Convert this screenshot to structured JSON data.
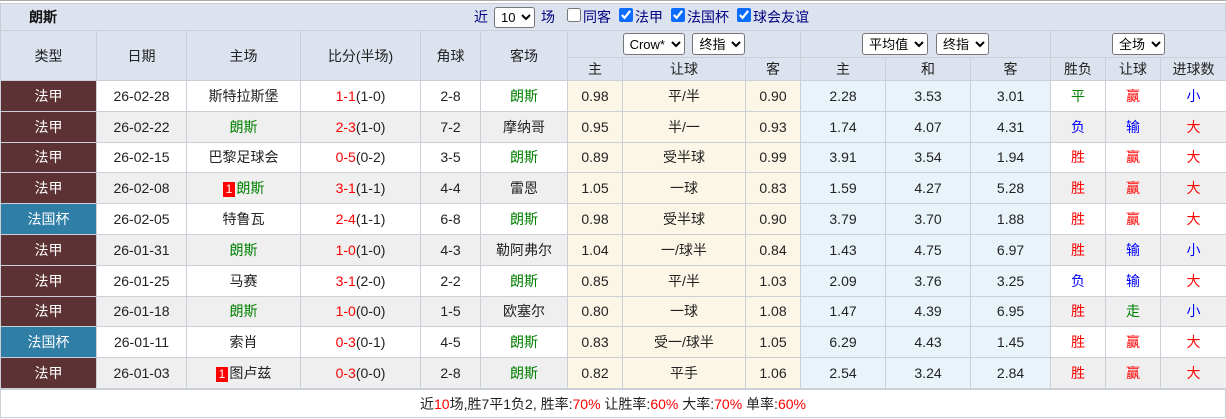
{
  "title": "朗斯",
  "toolbar": {
    "recent_label": "近",
    "count_value": "10",
    "matches_label": "场",
    "filters": [
      {
        "label": "同客",
        "checked": false
      },
      {
        "label": "法甲",
        "checked": true
      },
      {
        "label": "法国杯",
        "checked": true
      },
      {
        "label": "球会友谊",
        "checked": true
      }
    ]
  },
  "header": {
    "static_columns": [
      "类型",
      "日期",
      "主场",
      "比分(半场)",
      "角球",
      "客场"
    ],
    "odds_group": {
      "selects": [
        "Crow*",
        "终指"
      ],
      "columns": [
        "主",
        "让球",
        "客"
      ]
    },
    "avg_group": {
      "selects": [
        "平均值",
        "终指"
      ],
      "columns": [
        "主",
        "和",
        "客"
      ]
    },
    "result_group": {
      "selects": [
        "全场"
      ],
      "columns": [
        "胜负",
        "让球",
        "进球数"
      ]
    }
  },
  "colors": {
    "ligue1_bg": "#5c3234",
    "cup_bg": "#2e7ea6",
    "team_green": "#008000",
    "score_red": "#ff0000",
    "result_red": "#ff0000",
    "result_blue": "#0000ff",
    "result_green": "#008000",
    "odds_bg": "#fcf6e7",
    "avg_bg": "#e9f4fa",
    "header_bg": "#dce3ee",
    "row_alt_bg": "#efefef",
    "label_navy": "#000080"
  },
  "rows": [
    {
      "type": "法甲",
      "type_bg": "ligue1_bg",
      "date": "26-02-28",
      "home": {
        "badge": "",
        "name": "斯特拉斯堡",
        "green": false
      },
      "score": {
        "main": "1-1",
        "half": "(1-0)"
      },
      "corner": "2-8",
      "away": {
        "name": "朗斯",
        "green": true
      },
      "odds_home": "0.98",
      "handicap": "平/半",
      "odds_away": "0.90",
      "avg_home": "2.28",
      "avg_draw": "3.53",
      "avg_away": "3.01",
      "outcome": {
        "t": "平",
        "c": "cg"
      },
      "hresult": {
        "t": "赢",
        "c": "cr"
      },
      "goals": {
        "t": "小",
        "c": "cb"
      }
    },
    {
      "type": "法甲",
      "type_bg": "ligue1_bg",
      "date": "26-02-22",
      "home": {
        "badge": "",
        "name": "朗斯",
        "green": true
      },
      "score": {
        "main": "2-3",
        "half": "(1-0)"
      },
      "corner": "7-2",
      "away": {
        "name": "摩纳哥",
        "green": false
      },
      "odds_home": "0.95",
      "handicap": "半/一",
      "odds_away": "0.93",
      "avg_home": "1.74",
      "avg_draw": "4.07",
      "avg_away": "4.31",
      "outcome": {
        "t": "负",
        "c": "cb"
      },
      "hresult": {
        "t": "输",
        "c": "cb"
      },
      "goals": {
        "t": "大",
        "c": "cr"
      }
    },
    {
      "type": "法甲",
      "type_bg": "ligue1_bg",
      "date": "26-02-15",
      "home": {
        "badge": "",
        "name": "巴黎足球会",
        "green": false
      },
      "score": {
        "main": "0-5",
        "half": "(0-2)"
      },
      "corner": "3-5",
      "away": {
        "name": "朗斯",
        "green": true
      },
      "odds_home": "0.89",
      "handicap": "受半球",
      "odds_away": "0.99",
      "avg_home": "3.91",
      "avg_draw": "3.54",
      "avg_away": "1.94",
      "outcome": {
        "t": "胜",
        "c": "cr"
      },
      "hresult": {
        "t": "赢",
        "c": "cr"
      },
      "goals": {
        "t": "大",
        "c": "cr"
      }
    },
    {
      "type": "法甲",
      "type_bg": "ligue1_bg",
      "date": "26-02-08",
      "home": {
        "badge": "1",
        "name": "朗斯",
        "green": true
      },
      "score": {
        "main": "3-1",
        "half": "(1-1)"
      },
      "corner": "4-4",
      "away": {
        "name": "雷恩",
        "green": false
      },
      "odds_home": "1.05",
      "handicap": "一球",
      "odds_away": "0.83",
      "avg_home": "1.59",
      "avg_draw": "4.27",
      "avg_away": "5.28",
      "outcome": {
        "t": "胜",
        "c": "cr"
      },
      "hresult": {
        "t": "赢",
        "c": "cr"
      },
      "goals": {
        "t": "大",
        "c": "cr"
      }
    },
    {
      "type": "法国杯",
      "type_bg": "cup_bg",
      "date": "26-02-05",
      "home": {
        "badge": "",
        "name": "特鲁瓦",
        "green": false
      },
      "score": {
        "main": "2-4",
        "half": "(1-1)"
      },
      "corner": "6-8",
      "away": {
        "name": "朗斯",
        "green": true
      },
      "odds_home": "0.98",
      "handicap": "受半球",
      "odds_away": "0.90",
      "avg_home": "3.79",
      "avg_draw": "3.70",
      "avg_away": "1.88",
      "outcome": {
        "t": "胜",
        "c": "cr"
      },
      "hresult": {
        "t": "赢",
        "c": "cr"
      },
      "goals": {
        "t": "大",
        "c": "cr"
      }
    },
    {
      "type": "法甲",
      "type_bg": "ligue1_bg",
      "date": "26-01-31",
      "home": {
        "badge": "",
        "name": "朗斯",
        "green": true
      },
      "score": {
        "main": "1-0",
        "half": "(1-0)"
      },
      "corner": "4-3",
      "away": {
        "name": "勒阿弗尔",
        "green": false
      },
      "odds_home": "1.04",
      "handicap": "一/球半",
      "odds_away": "0.84",
      "avg_home": "1.43",
      "avg_draw": "4.75",
      "avg_away": "6.97",
      "outcome": {
        "t": "胜",
        "c": "cr"
      },
      "hresult": {
        "t": "输",
        "c": "cb"
      },
      "goals": {
        "t": "小",
        "c": "cb"
      }
    },
    {
      "type": "法甲",
      "type_bg": "ligue1_bg",
      "date": "26-01-25",
      "home": {
        "badge": "",
        "name": "马赛",
        "green": false
      },
      "score": {
        "main": "3-1",
        "half": "(2-0)"
      },
      "corner": "2-2",
      "away": {
        "name": "朗斯",
        "green": true
      },
      "odds_home": "0.85",
      "handicap": "平/半",
      "odds_away": "1.03",
      "avg_home": "2.09",
      "avg_draw": "3.76",
      "avg_away": "3.25",
      "outcome": {
        "t": "负",
        "c": "cb"
      },
      "hresult": {
        "t": "输",
        "c": "cb"
      },
      "goals": {
        "t": "大",
        "c": "cr"
      }
    },
    {
      "type": "法甲",
      "type_bg": "ligue1_bg",
      "date": "26-01-18",
      "home": {
        "badge": "",
        "name": "朗斯",
        "green": true
      },
      "score": {
        "main": "1-0",
        "half": "(0-0)"
      },
      "corner": "1-5",
      "away": {
        "name": "欧塞尔",
        "green": false
      },
      "odds_home": "0.80",
      "handicap": "一球",
      "odds_away": "1.08",
      "avg_home": "1.47",
      "avg_draw": "4.39",
      "avg_away": "6.95",
      "outcome": {
        "t": "胜",
        "c": "cr"
      },
      "hresult": {
        "t": "走",
        "c": "cg"
      },
      "goals": {
        "t": "小",
        "c": "cb"
      }
    },
    {
      "type": "法国杯",
      "type_bg": "cup_bg",
      "date": "26-01-11",
      "home": {
        "badge": "",
        "name": "索肖",
        "green": false
      },
      "score": {
        "main": "0-3",
        "half": "(0-1)"
      },
      "corner": "4-5",
      "away": {
        "name": "朗斯",
        "green": true
      },
      "odds_home": "0.83",
      "handicap": "受一/球半",
      "odds_away": "1.05",
      "avg_home": "6.29",
      "avg_draw": "4.43",
      "avg_away": "1.45",
      "outcome": {
        "t": "胜",
        "c": "cr"
      },
      "hresult": {
        "t": "赢",
        "c": "cr"
      },
      "goals": {
        "t": "大",
        "c": "cr"
      }
    },
    {
      "type": "法甲",
      "type_bg": "ligue1_bg",
      "date": "26-01-03",
      "home": {
        "badge": "1",
        "name": "图卢兹",
        "green": false
      },
      "score": {
        "main": "0-3",
        "half": "(0-0)"
      },
      "corner": "2-8",
      "away": {
        "name": "朗斯",
        "green": true
      },
      "odds_home": "0.82",
      "handicap": "平手",
      "odds_away": "1.06",
      "avg_home": "2.54",
      "avg_draw": "3.24",
      "avg_away": "2.84",
      "outcome": {
        "t": "胜",
        "c": "cr"
      },
      "hresult": {
        "t": "赢",
        "c": "cr"
      },
      "goals": {
        "t": "大",
        "c": "cr"
      }
    }
  ],
  "footer_segments": [
    {
      "t": "近",
      "c": "k"
    },
    {
      "t": "10",
      "c": "r"
    },
    {
      "t": "场,胜7平1负2, 胜率:",
      "c": "k"
    },
    {
      "t": "70%",
      "c": "r"
    },
    {
      "t": " 让胜率:",
      "c": "k"
    },
    {
      "t": "60%",
      "c": "r"
    },
    {
      "t": " 大率:",
      "c": "k"
    },
    {
      "t": "70%",
      "c": "r"
    },
    {
      "t": " 单率:",
      "c": "k"
    },
    {
      "t": "60%",
      "c": "r"
    }
  ]
}
